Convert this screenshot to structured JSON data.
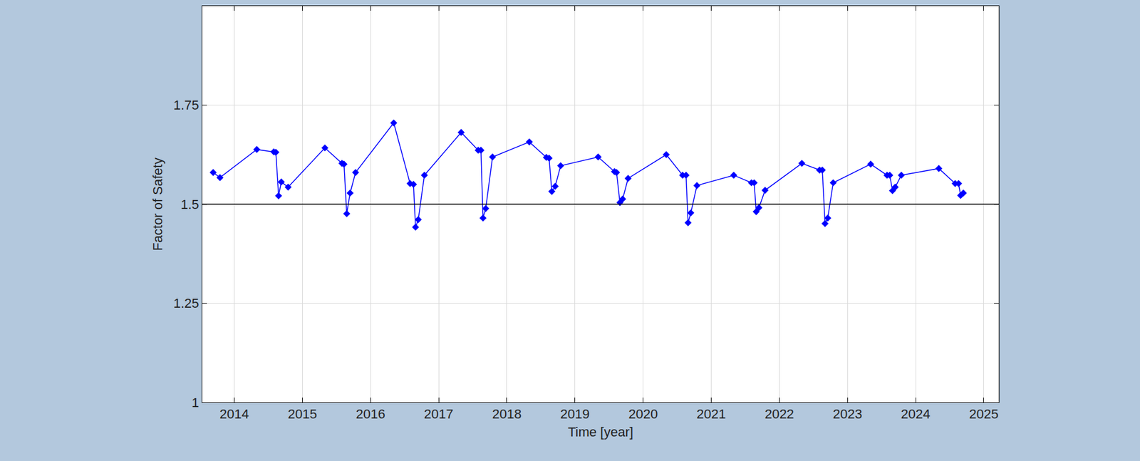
{
  "chart_data": {
    "type": "line",
    "x_label": "Time [year]",
    "y_label": "Factor of Safety",
    "x": [
      2013.69,
      2013.79,
      2014.33,
      2014.58,
      2014.61,
      2014.65,
      2014.69,
      2014.79,
      2015.33,
      2015.58,
      2015.61,
      2015.65,
      2015.7,
      2015.78,
      2016.34,
      2016.58,
      2016.63,
      2016.66,
      2016.7,
      2016.79,
      2017.33,
      2017.58,
      2017.62,
      2017.65,
      2017.69,
      2017.79,
      2018.33,
      2018.58,
      2018.62,
      2018.66,
      2018.71,
      2018.79,
      2019.34,
      2019.58,
      2019.61,
      2019.66,
      2019.7,
      2019.78,
      2020.34,
      2020.58,
      2020.63,
      2020.66,
      2020.7,
      2020.79,
      2021.33,
      2021.59,
      2021.63,
      2021.66,
      2021.7,
      2021.79,
      2022.33,
      2022.59,
      2022.63,
      2022.67,
      2022.71,
      2022.79,
      2023.34,
      2023.58,
      2023.62,
      2023.66,
      2023.7,
      2023.79,
      2024.34,
      2024.58,
      2024.63,
      2024.66,
      2024.7
    ],
    "values": [
      1.58,
      1.567,
      1.638,
      1.632,
      1.631,
      1.521,
      1.556,
      1.543,
      1.642,
      1.603,
      1.601,
      1.476,
      1.528,
      1.58,
      1.705,
      1.552,
      1.55,
      1.442,
      1.461,
      1.573,
      1.681,
      1.636,
      1.636,
      1.465,
      1.489,
      1.619,
      1.657,
      1.618,
      1.616,
      1.532,
      1.545,
      1.597,
      1.619,
      1.582,
      1.58,
      1.504,
      1.513,
      1.565,
      1.625,
      1.573,
      1.573,
      1.453,
      1.478,
      1.547,
      1.573,
      1.554,
      1.554,
      1.481,
      1.491,
      1.535,
      1.603,
      1.586,
      1.586,
      1.451,
      1.465,
      1.554,
      1.601,
      1.573,
      1.573,
      1.534,
      1.543,
      1.573,
      1.59,
      1.552,
      1.552,
      1.522,
      1.528
    ],
    "color": "#0000ff",
    "marker": "diamond",
    "line_style": "solid",
    "hline": 1.5,
    "xlim": [
      2013.53,
      2025.22
    ],
    "xticks": [
      2014,
      2015,
      2016,
      2017,
      2018,
      2019,
      2020,
      2021,
      2022,
      2023,
      2024,
      2025
    ],
    "ylim": [
      1,
      2
    ],
    "yticks": [
      1,
      1.25,
      1.5,
      1.75
    ],
    "grid": true
  }
}
